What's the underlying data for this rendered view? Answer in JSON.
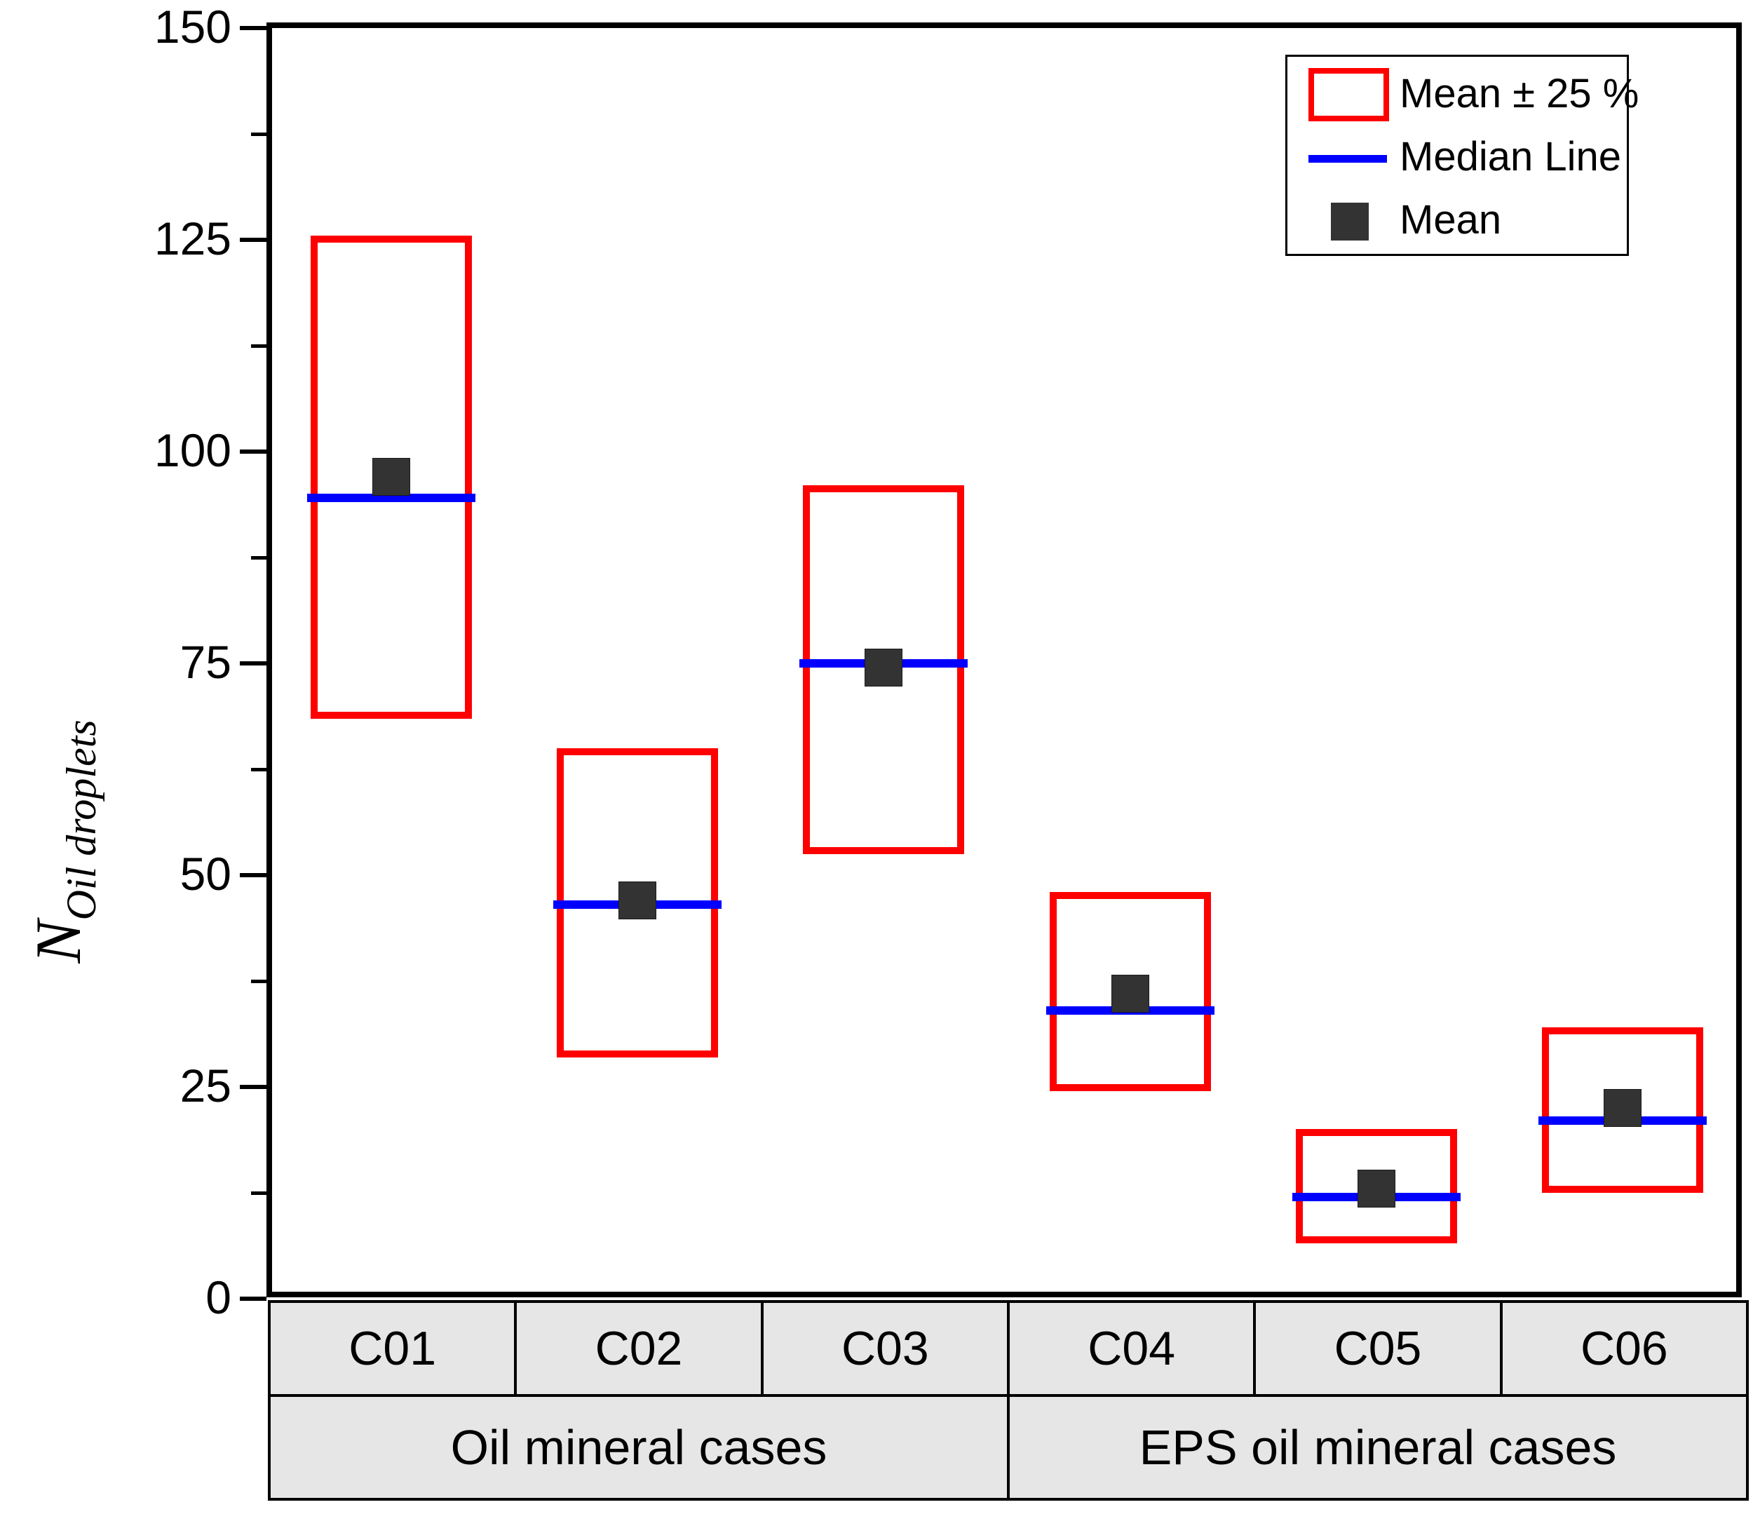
{
  "chart_data": {
    "type": "box",
    "title": "",
    "ylabel_main": "N",
    "ylabel_sub": "Oil droplets",
    "xlabel": "",
    "ylim": [
      0,
      150
    ],
    "y_major_ticks": [
      0,
      25,
      50,
      75,
      100,
      125,
      150
    ],
    "y_minor_ticks": [
      12.5,
      37.5,
      62.5,
      87.5,
      112.5,
      137.5
    ],
    "grid": false,
    "legend_position": "top-right",
    "legend": [
      {
        "swatch": "box",
        "label": "Mean ± 25 %"
      },
      {
        "swatch": "line",
        "label": "Median Line"
      },
      {
        "swatch": "square",
        "label": "Mean"
      }
    ],
    "categories": [
      "C01",
      "C02",
      "C03",
      "C04",
      "C05",
      "C06"
    ],
    "series": [
      {
        "category": "C01",
        "box_low": 68.5,
        "box_high": 125.5,
        "median": 94.5,
        "mean": 97
      },
      {
        "category": "C02",
        "box_low": 28.5,
        "box_high": 65,
        "median": 46.5,
        "mean": 47
      },
      {
        "category": "C03",
        "box_low": 52.5,
        "box_high": 96,
        "median": 75,
        "mean": 74.5
      },
      {
        "category": "C04",
        "box_low": 24.5,
        "box_high": 48,
        "median": 34,
        "mean": 36
      },
      {
        "category": "C05",
        "box_low": 6.5,
        "box_high": 20,
        "median": 12,
        "mean": 13
      },
      {
        "category": "C06",
        "box_low": 12.5,
        "box_high": 32,
        "median": 21,
        "mean": 22.5
      }
    ],
    "groups": [
      {
        "label": "Oil mineral cases",
        "span": [
          0,
          2
        ]
      },
      {
        "label": "EPS oil mineral cases",
        "span": [
          3,
          5
        ]
      }
    ],
    "colors": {
      "box_stroke": "#ff0000",
      "median": "#0000ff",
      "mean_marker": "#333333",
      "axis": "#000000",
      "table_bg": "#e6e6e6",
      "background": "#ffffff"
    }
  }
}
